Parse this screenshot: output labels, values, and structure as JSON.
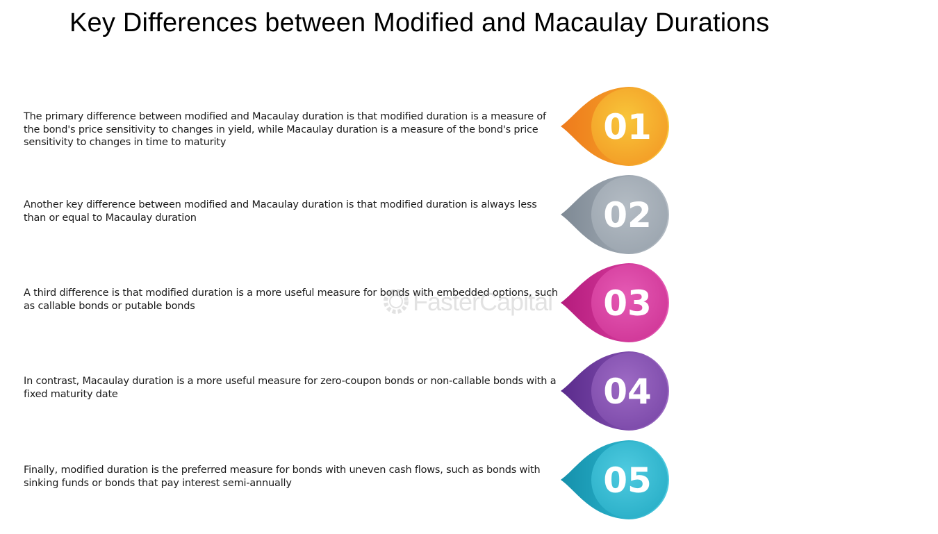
{
  "title": "Key Differences between Modified and Macaulay Durations",
  "watermark": "FasterCapital",
  "items": [
    {
      "number": "01",
      "text": "The primary difference between modified and Macaulay duration is that modified duration is a measure of the bond's price sensitivity to changes in yield, while Macaulay duration is a measure of the bond's price sensitivity to changes in time to maturity",
      "colors": {
        "light": "#f8c63a",
        "dark": "#ee7a1c",
        "ring": "#f39a25"
      }
    },
    {
      "number": "02",
      "text": "Another key difference between modified and Macaulay duration is that modified duration is always less than or equal to Macaulay duration",
      "colors": {
        "light": "#b4bcc4",
        "dark": "#7e8994",
        "ring": "#9aa4ae"
      }
    },
    {
      "number": "03",
      "text": "A third difference is that modified duration is a more useful measure for bonds with embedded options, such as callable bonds or putable bonds",
      "colors": {
        "light": "#e55ab4",
        "dark": "#b41b7c",
        "ring": "#cf3596"
      }
    },
    {
      "number": "04",
      "text": "In contrast, Macaulay duration is a more useful measure for zero-coupon bonds or non-callable bonds with a fixed maturity date",
      "colors": {
        "light": "#9d6ac4",
        "dark": "#5a2b8c",
        "ring": "#7a48a8"
      }
    },
    {
      "number": "05",
      "text": "Finally, modified duration is the preferred measure for bonds with uneven cash flows, such as bonds with sinking funds or bonds that pay interest semi-annually",
      "colors": {
        "light": "#4fcbe0",
        "dark": "#1590ab",
        "ring": "#27adc6"
      }
    }
  ]
}
